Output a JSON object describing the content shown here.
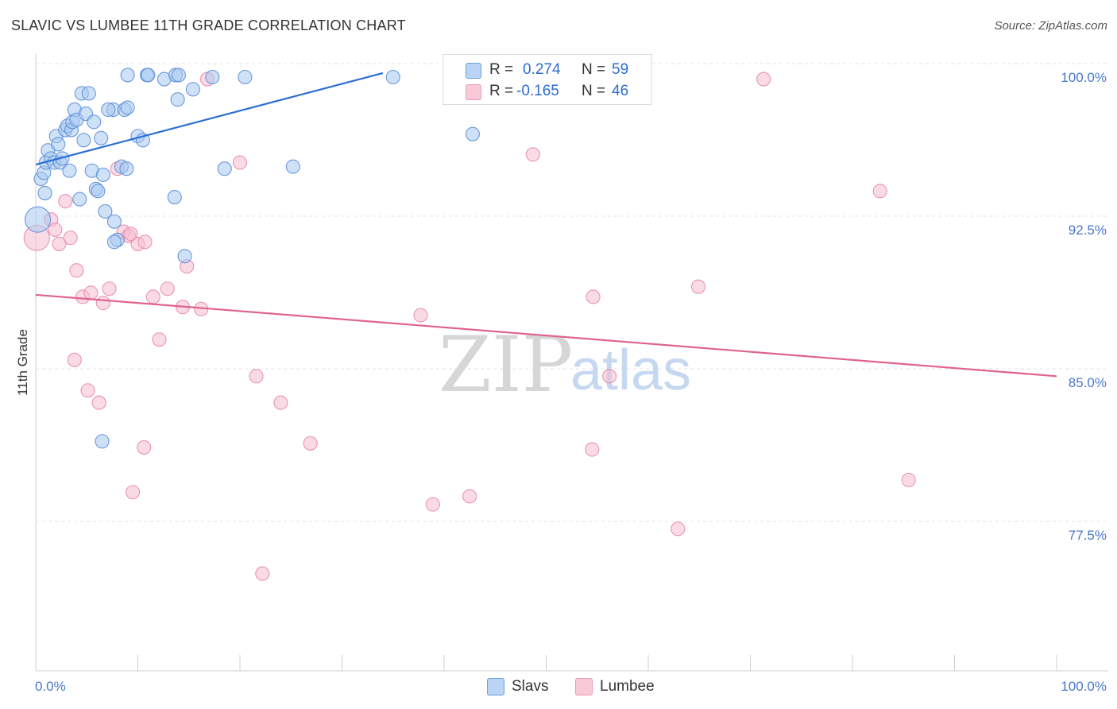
{
  "header": {
    "title": "SLAVIC VS LUMBEE 11TH GRADE CORRELATION CHART",
    "source": "Source: ZipAtlas.com"
  },
  "legend": {
    "rows": [
      {
        "r_label": "R =",
        "r_value": "0.274",
        "n_label": "N =",
        "n_value": "59"
      },
      {
        "r_label": "R =",
        "r_value": "-0.165",
        "n_label": "N =",
        "n_value": "46"
      }
    ]
  },
  "bottom_legend": {
    "slavs": "Slavs",
    "lumbee": "Lumbee"
  },
  "colors": {
    "slavs_fill": "#a8c8f0",
    "slavs_stroke": "#5b8fd8",
    "slavs_line": "#2a6fd1",
    "lumbee_fill": "#f6bdd0",
    "lumbee_stroke": "#e88aaa",
    "lumbee_line": "#e0628f",
    "grid": "#e3e3e3",
    "tick_text": "#4a78c8"
  },
  "watermark": {
    "zip": "ZIP",
    "atlas": "atlas"
  },
  "chart_data": {
    "type": "scatter",
    "title": "SLAVIC VS LUMBEE 11TH GRADE CORRELATION CHART",
    "xlabel": "",
    "ylabel": "11th Grade",
    "xlim": [
      0,
      100
    ],
    "ylim": [
      71.2,
      100.8
    ],
    "x_tick_labels": [
      "0.0%",
      "100.0%"
    ],
    "y_ticks": [
      77.5,
      85.0,
      92.5,
      100.0
    ],
    "y_tick_labels": [
      "77.5%",
      "85.0%",
      "92.5%",
      "100.0%"
    ],
    "grid": true,
    "series": [
      {
        "name": "Slavs",
        "r": 0.274,
        "n": 59,
        "trend": {
          "x": [
            0,
            34
          ],
          "y": [
            95.7,
            100.2
          ]
        },
        "points": [
          {
            "x": 0.2,
            "y": 93.0,
            "s": "big"
          },
          {
            "x": 0.5,
            "y": 95.0
          },
          {
            "x": 0.8,
            "y": 95.3
          },
          {
            "x": 0.9,
            "y": 94.3
          },
          {
            "x": 1.0,
            "y": 95.8
          },
          {
            "x": 1.2,
            "y": 96.4
          },
          {
            "x": 1.5,
            "y": 96.0
          },
          {
            "x": 1.8,
            "y": 95.8
          },
          {
            "x": 2.0,
            "y": 97.1
          },
          {
            "x": 2.2,
            "y": 96.7
          },
          {
            "x": 2.4,
            "y": 95.8
          },
          {
            "x": 2.6,
            "y": 96.0
          },
          {
            "x": 2.9,
            "y": 97.4
          },
          {
            "x": 3.1,
            "y": 97.6
          },
          {
            "x": 3.3,
            "y": 95.4
          },
          {
            "x": 3.5,
            "y": 97.4
          },
          {
            "x": 3.6,
            "y": 97.8
          },
          {
            "x": 3.8,
            "y": 98.4
          },
          {
            "x": 4.0,
            "y": 97.9
          },
          {
            "x": 4.3,
            "y": 94.0
          },
          {
            "x": 4.5,
            "y": 99.2
          },
          {
            "x": 4.7,
            "y": 96.9
          },
          {
            "x": 4.9,
            "y": 98.2
          },
          {
            "x": 5.2,
            "y": 99.2
          },
          {
            "x": 5.5,
            "y": 95.4
          },
          {
            "x": 5.9,
            "y": 94.5
          },
          {
            "x": 6.1,
            "y": 94.4
          },
          {
            "x": 6.4,
            "y": 97.0
          },
          {
            "x": 6.6,
            "y": 95.2
          },
          {
            "x": 6.8,
            "y": 93.4
          },
          {
            "x": 7.6,
            "y": 98.4
          },
          {
            "x": 5.7,
            "y": 97.8
          },
          {
            "x": 7.7,
            "y": 92.9
          },
          {
            "x": 8.0,
            "y": 92.0
          },
          {
            "x": 8.7,
            "y": 98.4
          },
          {
            "x": 9.0,
            "y": 98.5
          },
          {
            "x": 6.5,
            "y": 82.1
          },
          {
            "x": 7.1,
            "y": 98.4
          },
          {
            "x": 7.7,
            "y": 91.9
          },
          {
            "x": 8.4,
            "y": 95.6
          },
          {
            "x": 8.9,
            "y": 95.5
          },
          {
            "x": 9.0,
            "y": 100.1
          },
          {
            "x": 10.0,
            "y": 97.1
          },
          {
            "x": 10.5,
            "y": 96.9
          },
          {
            "x": 10.9,
            "y": 100.1
          },
          {
            "x": 11.0,
            "y": 100.1
          },
          {
            "x": 12.6,
            "y": 99.9
          },
          {
            "x": 13.6,
            "y": 94.1
          },
          {
            "x": 13.9,
            "y": 98.9
          },
          {
            "x": 13.7,
            "y": 100.1
          },
          {
            "x": 14.0,
            "y": 100.1
          },
          {
            "x": 14.6,
            "y": 91.2
          },
          {
            "x": 15.4,
            "y": 99.4
          },
          {
            "x": 18.5,
            "y": 95.5
          },
          {
            "x": 17.3,
            "y": 100.0
          },
          {
            "x": 20.5,
            "y": 100.0
          },
          {
            "x": 25.2,
            "y": 95.6
          },
          {
            "x": 35.0,
            "y": 100.0
          },
          {
            "x": 42.8,
            "y": 97.2
          }
        ]
      },
      {
        "name": "Lumbee",
        "r": -0.165,
        "n": 46,
        "trend": {
          "x": [
            0,
            100
          ],
          "y": [
            89.3,
            85.3
          ]
        },
        "points": [
          {
            "x": 0.1,
            "y": 92.1,
            "s": "big"
          },
          {
            "x": 1.5,
            "y": 93.0
          },
          {
            "x": 1.9,
            "y": 92.5
          },
          {
            "x": 2.3,
            "y": 91.8
          },
          {
            "x": 2.9,
            "y": 93.9
          },
          {
            "x": 3.4,
            "y": 92.1
          },
          {
            "x": 3.8,
            "y": 86.1
          },
          {
            "x": 4.0,
            "y": 90.5
          },
          {
            "x": 4.6,
            "y": 89.2
          },
          {
            "x": 5.1,
            "y": 84.6
          },
          {
            "x": 5.4,
            "y": 89.4
          },
          {
            "x": 6.2,
            "y": 84.0
          },
          {
            "x": 6.6,
            "y": 88.9
          },
          {
            "x": 7.2,
            "y": 89.6
          },
          {
            "x": 8.0,
            "y": 95.5
          },
          {
            "x": 8.6,
            "y": 92.4
          },
          {
            "x": 9.1,
            "y": 92.2
          },
          {
            "x": 9.5,
            "y": 79.6
          },
          {
            "x": 10.0,
            "y": 91.8
          },
          {
            "x": 10.6,
            "y": 81.8
          },
          {
            "x": 10.7,
            "y": 91.9
          },
          {
            "x": 11.5,
            "y": 89.2
          },
          {
            "x": 12.1,
            "y": 87.1
          },
          {
            "x": 12.9,
            "y": 89.6
          },
          {
            "x": 14.4,
            "y": 88.7
          },
          {
            "x": 14.8,
            "y": 90.7
          },
          {
            "x": 16.2,
            "y": 88.6
          },
          {
            "x": 16.8,
            "y": 99.9
          },
          {
            "x": 20.0,
            "y": 95.8
          },
          {
            "x": 21.6,
            "y": 85.3
          },
          {
            "x": 22.2,
            "y": 75.6
          },
          {
            "x": 24.0,
            "y": 84.0
          },
          {
            "x": 26.9,
            "y": 82.0
          },
          {
            "x": 37.7,
            "y": 88.3
          },
          {
            "x": 38.9,
            "y": 79.0
          },
          {
            "x": 42.5,
            "y": 79.4
          },
          {
            "x": 48.7,
            "y": 96.2
          },
          {
            "x": 54.5,
            "y": 81.7
          },
          {
            "x": 54.6,
            "y": 89.2
          },
          {
            "x": 56.2,
            "y": 85.3
          },
          {
            "x": 62.9,
            "y": 77.8
          },
          {
            "x": 64.9,
            "y": 89.7
          },
          {
            "x": 71.3,
            "y": 99.9
          },
          {
            "x": 82.7,
            "y": 94.4
          },
          {
            "x": 85.5,
            "y": 80.2
          },
          {
            "x": 9.3,
            "y": 92.3
          }
        ]
      }
    ]
  }
}
